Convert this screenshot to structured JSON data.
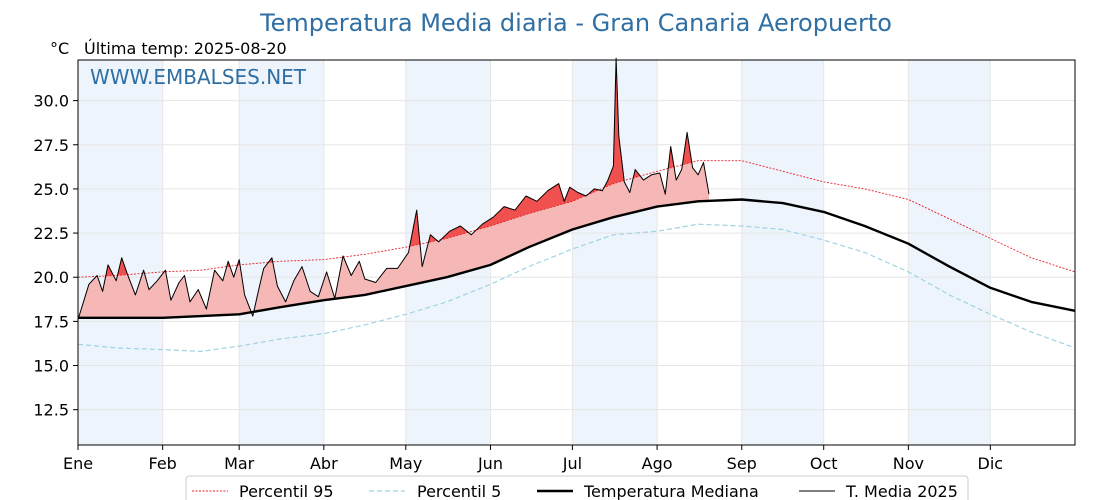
{
  "chart_data": {
    "type": "line",
    "title": "Temperatura Media diaria - Gran Canaria Aeropuerto",
    "unit": "°C",
    "last_temp_label": "Última temp: 2025-08-20",
    "watermark": "WWW.EMBALSES.NET",
    "ylim": [
      10.5,
      32.3
    ],
    "yticks": [
      "12.5",
      "15.0",
      "17.5",
      "20.0",
      "22.5",
      "25.0",
      "27.5",
      "30.0"
    ],
    "xlim": [
      1,
      366
    ],
    "months": [
      {
        "label": "Ene",
        "day": 1
      },
      {
        "label": "Feb",
        "day": 32
      },
      {
        "label": "Mar",
        "day": 60
      },
      {
        "label": "Abr",
        "day": 91
      },
      {
        "label": "May",
        "day": 121
      },
      {
        "label": "Jun",
        "day": 152
      },
      {
        "label": "Jul",
        "day": 182
      },
      {
        "label": "Ago",
        "day": 213
      },
      {
        "label": "Sep",
        "day": 244
      },
      {
        "label": "Oct",
        "day": 274
      },
      {
        "label": "Nov",
        "day": 305
      },
      {
        "label": "Dic",
        "day": 335
      }
    ],
    "grid": true,
    "legend_position": "bottom",
    "colors": {
      "p95": "#e8222a",
      "p5": "#9fd3e3",
      "median": "#000000",
      "media2025": "#000000",
      "fill_above_p95": "#f0504e",
      "fill_above_median": "#f5b8b6",
      "band": "#eef4fb"
    },
    "series": [
      {
        "name": "Percentil 95",
        "key": "p95",
        "x": [
          1,
          15,
          32,
          46,
          60,
          75,
          91,
          106,
          121,
          136,
          152,
          166,
          182,
          197,
          213,
          228,
          244,
          259,
          274,
          289,
          305,
          320,
          335,
          350,
          366
        ],
        "y": [
          20.0,
          20.1,
          20.3,
          20.4,
          20.7,
          20.9,
          21.0,
          21.3,
          21.7,
          22.2,
          22.9,
          23.6,
          24.3,
          25.3,
          26.0,
          26.6,
          26.6,
          26.0,
          25.4,
          25.0,
          24.4,
          23.3,
          22.2,
          21.1,
          20.3
        ]
      },
      {
        "name": "Percentil 5",
        "key": "p5",
        "x": [
          1,
          15,
          32,
          46,
          60,
          75,
          91,
          106,
          121,
          136,
          152,
          166,
          182,
          197,
          213,
          228,
          244,
          259,
          274,
          289,
          305,
          320,
          335,
          350,
          366
        ],
        "y": [
          16.2,
          16.0,
          15.9,
          15.8,
          16.1,
          16.5,
          16.8,
          17.3,
          17.9,
          18.6,
          19.6,
          20.6,
          21.6,
          22.4,
          22.6,
          23.0,
          22.9,
          22.7,
          22.1,
          21.4,
          20.3,
          19.0,
          17.9,
          16.9,
          16.0
        ]
      },
      {
        "name": "Temperatura Mediana",
        "key": "median",
        "x": [
          1,
          15,
          32,
          46,
          60,
          75,
          91,
          106,
          121,
          136,
          152,
          166,
          182,
          197,
          213,
          228,
          244,
          259,
          274,
          289,
          305,
          320,
          335,
          350,
          366
        ],
        "y": [
          17.7,
          17.7,
          17.7,
          17.8,
          17.9,
          18.3,
          18.7,
          19.0,
          19.5,
          20.0,
          20.7,
          21.7,
          22.7,
          23.4,
          24.0,
          24.3,
          24.4,
          24.2,
          23.7,
          22.9,
          21.9,
          20.6,
          19.4,
          18.6,
          18.1
        ]
      },
      {
        "name": "T. Media 2025",
        "key": "media2025",
        "x": [
          1,
          5,
          8,
          10,
          12,
          15,
          17,
          19,
          22,
          25,
          27,
          30,
          33,
          35,
          38,
          40,
          42,
          45,
          48,
          51,
          54,
          56,
          58,
          60,
          62,
          65,
          67,
          69,
          72,
          74,
          77,
          80,
          83,
          86,
          89,
          92,
          95,
          98,
          101,
          104,
          106,
          110,
          114,
          118,
          122,
          125,
          127,
          130,
          133,
          137,
          141,
          145,
          149,
          153,
          157,
          161,
          165,
          169,
          173,
          177,
          179,
          181,
          184,
          187,
          190,
          193,
          195,
          197,
          198,
          199,
          201,
          203,
          205,
          208,
          211,
          214,
          216,
          218,
          220,
          222,
          224,
          226,
          228,
          230,
          232
        ],
        "y": [
          17.6,
          19.6,
          20.1,
          19.2,
          20.7,
          19.8,
          21.1,
          20.2,
          19.0,
          20.4,
          19.3,
          19.8,
          20.4,
          18.7,
          19.7,
          20.1,
          18.6,
          19.3,
          18.2,
          20.4,
          19.8,
          20.9,
          20.0,
          21.0,
          19.0,
          17.8,
          19.2,
          20.5,
          21.1,
          19.5,
          18.6,
          19.8,
          20.6,
          19.2,
          18.9,
          20.3,
          18.8,
          21.2,
          20.1,
          20.9,
          19.9,
          19.7,
          20.5,
          20.5,
          21.4,
          23.8,
          20.6,
          22.4,
          22.0,
          22.6,
          22.9,
          22.4,
          23.0,
          23.4,
          24.0,
          23.8,
          24.6,
          24.3,
          24.9,
          25.3,
          24.3,
          25.1,
          24.8,
          24.6,
          25.0,
          24.9,
          25.5,
          26.3,
          32.4,
          28.0,
          25.4,
          24.8,
          26.1,
          25.5,
          25.8,
          25.9,
          24.7,
          27.4,
          25.5,
          26.1,
          28.2,
          26.2,
          25.8,
          26.5,
          24.7
        ]
      }
    ],
    "legend": [
      "Percentil 95",
      "Percentil 5",
      "Temperatura Mediana",
      "T. Media 2025"
    ]
  }
}
